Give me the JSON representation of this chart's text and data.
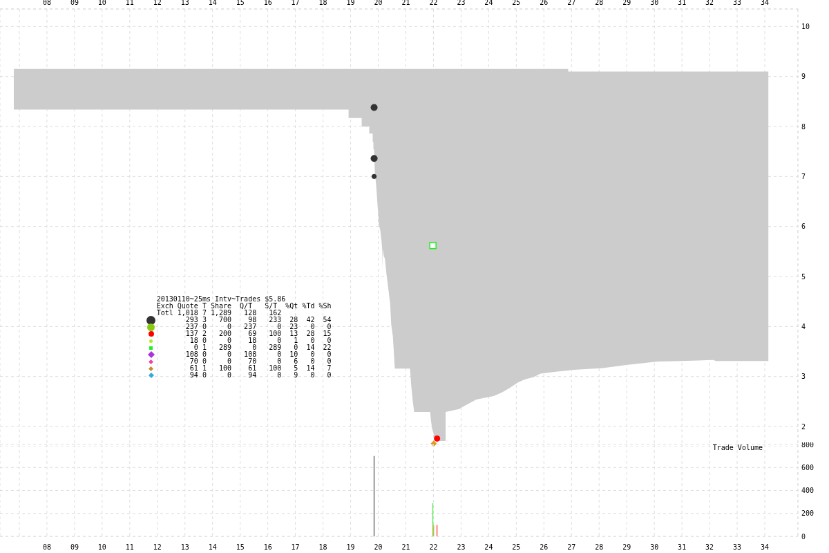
{
  "chart_data": [
    {
      "type": "line",
      "series": [
        {
          "color": "#cccccc",
          "x": [
            6.8,
            18.925,
            18.925,
            19.4,
            19.4,
            19.675,
            19.675,
            19.8,
            19.8,
            19.825,
            19.825,
            19.85,
            19.875,
            19.925,
            19.975,
            20.0,
            20.025,
            20.075,
            20.1,
            20.125,
            20.14,
            20.15,
            20.16,
            20.2,
            20.24,
            20.3,
            20.37,
            20.43,
            20.47,
            20.53,
            20.57,
            20.6,
            21.15,
            21.2,
            21.25,
            21.3,
            21.88,
            21.91,
            21.95,
            22.01,
            22.05,
            22.44,
            22.44,
            22.93,
            23.05,
            23.55,
            23.98,
            24.18,
            24.48,
            24.73,
            25.05,
            25.3,
            25.63,
            25.88,
            26.48,
            26.88,
            26.88,
            26.98,
            28.13,
            28.98,
            30.13,
            30.98,
            32.13,
            32.23,
            34.13
          ],
          "values": [
            null,
            null,
            null,
            null,
            null,
            null,
            null,
            null,
            null,
            null,
            null,
            null,
            null,
            null,
            null,
            null,
            null,
            null,
            null,
            null,
            null,
            null,
            null,
            null,
            null,
            null,
            null,
            null,
            null,
            null,
            null,
            null,
            null,
            null,
            null,
            null,
            null,
            null,
            null,
            null,
            null,
            null,
            null,
            null,
            null,
            null,
            null,
            null,
            null,
            null,
            null,
            null,
            null,
            null,
            null,
            null,
            null,
            null,
            null,
            null,
            null,
            null,
            null,
            null,
            null
          ],
          "lower": [
            8.34,
            8.34,
            8.17,
            8.17,
            8.0,
            8.0,
            7.86,
            7.86,
            7.69,
            7.69,
            7.54,
            7.54,
            7.1,
            6.82,
            6.42,
            6.27,
            6.03,
            5.92,
            5.8,
            5.67,
            5.56,
            5.12,
            5.56,
            5.41,
            5.36,
            5.04,
            4.73,
            4.47,
            4.04,
            3.8,
            3.44,
            3.16,
            3.16,
            2.79,
            2.51,
            2.29,
            2.29,
            2.12,
            1.96,
            1.85,
            1.71,
            1.71,
            2.29,
            2.35,
            2.39,
            2.54,
            2.59,
            2.61,
            2.68,
            2.76,
            2.88,
            2.94,
            2.99,
            3.06,
            3.1,
            3.12,
            3.12,
            3.13,
            3.17,
            3.23,
            3.3,
            3.31,
            3.33,
            3.31,
            3.31
          ],
          "upper": [
            9.15,
            9.15,
            9.15,
            9.15,
            9.15,
            9.15,
            9.15,
            9.15,
            9.15,
            9.15,
            9.15,
            9.15,
            9.15,
            9.15,
            9.15,
            9.15,
            9.15,
            9.15,
            9.15,
            9.15,
            9.15,
            9.15,
            9.15,
            9.15,
            9.15,
            9.15,
            9.15,
            9.15,
            9.15,
            9.15,
            9.15,
            9.15,
            9.15,
            9.15,
            9.15,
            9.15,
            9.15,
            9.15,
            9.15,
            9.15,
            9.15,
            9.15,
            9.15,
            9.15,
            9.15,
            9.15,
            9.15,
            9.15,
            9.15,
            9.15,
            9.15,
            9.15,
            9.15,
            9.15,
            9.15,
            9.15,
            9.1,
            9.1,
            9.1,
            9.1,
            9.1,
            9.1,
            9.1,
            9.1,
            9.1
          ]
        },
        {
          "type": "bubble",
          "color": "#333333",
          "marker": "circle",
          "x": [
            19.85,
            19.85,
            19.85
          ],
          "values": [
            8.38,
            7.36,
            7.0
          ],
          "sizes": [
            1,
            1,
            0.5
          ]
        },
        {
          "type": "scatter",
          "color": "#22ee22",
          "marker": "square",
          "x": [
            21.98
          ],
          "values": [
            5.62
          ]
        },
        {
          "type": "scatter",
          "color": "#ff0000",
          "marker": "circle",
          "x": [
            22.13
          ],
          "values": [
            1.76
          ]
        },
        {
          "type": "scatter",
          "color": "#dd9922",
          "marker": "diamond",
          "x": [
            22.01
          ],
          "values": [
            1.66
          ]
        }
      ],
      "xlim": [
        6.3,
        35.2
      ],
      "xticks": [
        {
          "value": 7,
          "label": null
        },
        {
          "value": 8,
          "label": "08"
        },
        {
          "value": 9,
          "label": "09"
        },
        10,
        11,
        12,
        13,
        14,
        15,
        16,
        17,
        18,
        19,
        20,
        21,
        22,
        23,
        24,
        25,
        26,
        27,
        28,
        29,
        30,
        31,
        32,
        33,
        34
      ],
      "ylim": [
        1.6,
        10.35
      ],
      "yticks": [
        2,
        3,
        4,
        5,
        6,
        7,
        8,
        9,
        10
      ],
      "grid": true,
      "annotations": [
        "20130110~25ms Intv~Trades $5.86",
        "Exch Quote T Share  Q/T   S/T  %Qt %Td %Sh",
        "Totl 1,018 7 1,289   128   162",
        "293 3   700    98   233  28  42  54",
        "237 0     0   237     0  23   0   0",
        "137 2   200    69   100  13  28  15",
        "18 0     0    18     0   1   0   0",
        "0 1   289     0   289   0  14  22",
        "108 0     0   108     0  10   0   0",
        "70 0     0    70     0   6   0   0",
        "61 1   100    61   100   5  14   7",
        "94 0     0    94     0   9   0   0"
      ]
    },
    {
      "type": "bar",
      "title": "Trade Volume",
      "x": [
        19.85,
        21.98,
        22.01,
        22.13
      ],
      "values": [
        700,
        289,
        100,
        100
      ],
      "colors": [
        "#333333",
        "#22ee22",
        "#dd9922",
        "#ff0000"
      ],
      "xlim": [
        6.3,
        35.2
      ],
      "xticks": [
        {
          "value": 7,
          "label": null
        },
        {
          "value": 8,
          "label": "08"
        },
        {
          "value": 9,
          "label": "09"
        },
        10,
        11,
        12,
        13,
        14,
        15,
        16,
        17,
        18,
        19,
        20,
        21,
        22,
        23,
        24,
        25,
        26,
        27,
        28,
        29,
        30,
        31,
        32,
        33,
        34
      ],
      "ylim": [
        0,
        800
      ],
      "yticks": [
        0,
        200,
        400,
        600,
        800
      ],
      "grid": true
    }
  ]
}
